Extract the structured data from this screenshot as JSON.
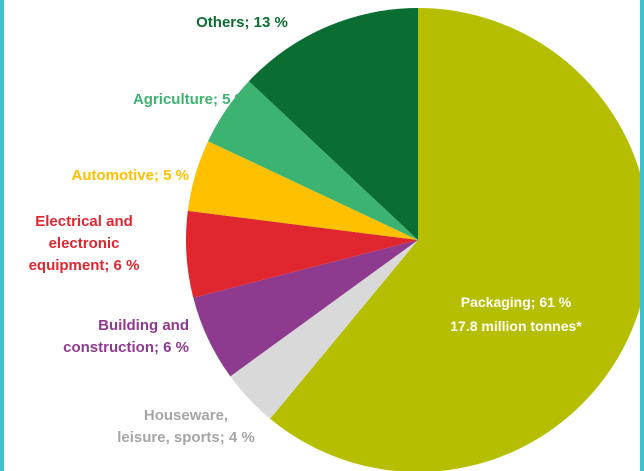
{
  "chart_data": {
    "type": "pie",
    "title": "",
    "legend": "none",
    "slices": [
      {
        "label_lines": [
          "Packaging; 61 %",
          "17.8 million tonnes*"
        ],
        "value": 61,
        "color": "#b5be00",
        "label_color": "#ffffff"
      },
      {
        "label_lines": [
          "Houseware,",
          "leisure, sports; 4 %"
        ],
        "value": 4,
        "color": "#d9d9d9",
        "label_color": "#a6a6a6"
      },
      {
        "label_lines": [
          "Building and",
          "construction; 6 %"
        ],
        "value": 6,
        "color": "#8e3a8e",
        "label_color": "#8e3a8e"
      },
      {
        "label_lines": [
          "Electrical and",
          "electronic",
          "equipment; 6 %"
        ],
        "value": 6,
        "color": "#e0262f",
        "label_color": "#e0262f"
      },
      {
        "label_lines": [
          "Automotive; 5 %"
        ],
        "value": 5,
        "color": "#ffc000",
        "label_color": "#ffc000"
      },
      {
        "label_lines": [
          "Agriculture; 5 %"
        ],
        "value": 5,
        "color": "#3cb371",
        "label_color": "#3cb371"
      },
      {
        "label_lines": [
          "Others; 13 %"
        ],
        "value": 13,
        "color": "#0a6e32",
        "label_color": "#0a6e32"
      }
    ]
  }
}
